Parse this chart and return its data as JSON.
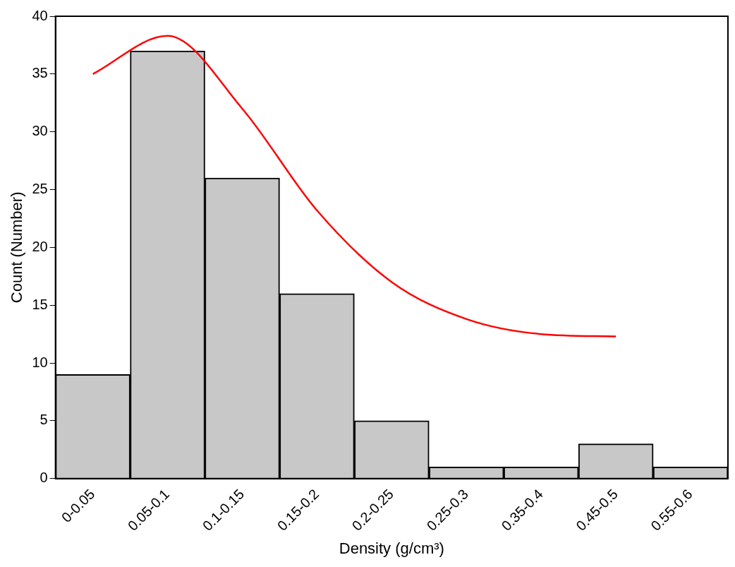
{
  "chart_data": {
    "type": "bar",
    "xlabel": "Density (g/cm³)",
    "ylabel": "Count (Number)",
    "categories": [
      "0-0.05",
      "0.05-0.1",
      "0.1-0.15",
      "0.15-0.2",
      "0.2-0.25",
      "0.25-0.3",
      "0.35-0.4",
      "0.45-0.5",
      "0.55-0.6"
    ],
    "series": [
      {
        "color": "#c8c8c8",
        "values": [
          9,
          37,
          26,
          16,
          5,
          1,
          1,
          3,
          1
        ]
      },
      {
        "type": "line",
        "color": "#ff0000",
        "values": [
          35,
          38.3,
          32,
          23.2,
          17,
          13.8,
          12.5,
          12.3,
          null
        ]
      }
    ],
    "ylim": [
      0,
      40
    ],
    "yticks": [
      0,
      5,
      10,
      15,
      20,
      25,
      30,
      35,
      40
    ],
    "grid": false,
    "legend": false,
    "marker": "none",
    "line_style": "solid"
  }
}
